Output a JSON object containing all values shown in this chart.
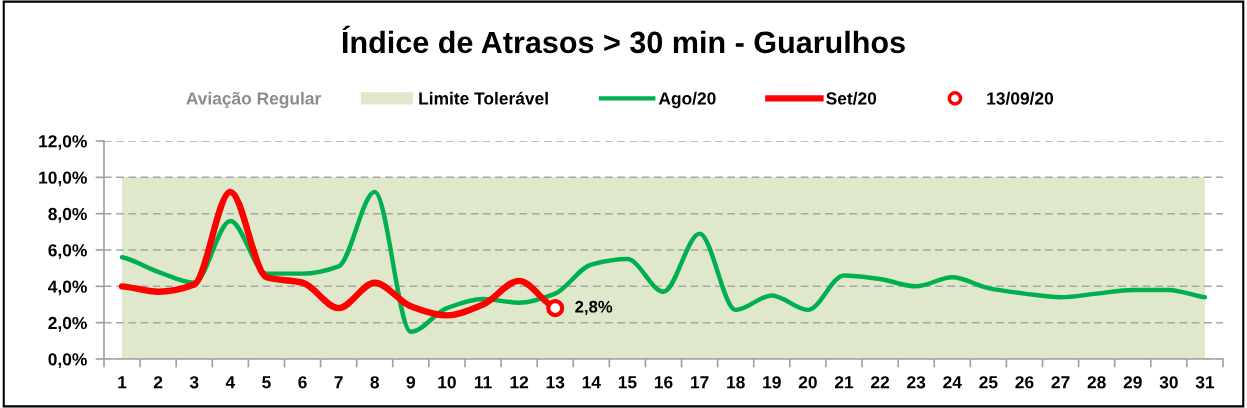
{
  "chart_data": {
    "type": "line",
    "title": "Índice de Atrasos > 30 min - Guarulhos",
    "legend_title": "Aviação Regular",
    "categories": [
      "1",
      "2",
      "3",
      "4",
      "5",
      "6",
      "7",
      "8",
      "9",
      "10",
      "11",
      "12",
      "13",
      "14",
      "15",
      "16",
      "17",
      "18",
      "19",
      "20",
      "21",
      "22",
      "23",
      "24",
      "25",
      "26",
      "27",
      "28",
      "29",
      "30",
      "31"
    ],
    "series": [
      {
        "name": "Ago/20",
        "color": "#00b050",
        "values": [
          5.6,
          4.8,
          4.2,
          7.6,
          4.7,
          4.7,
          5.1,
          9.2,
          1.5,
          2.8,
          3.3,
          3.1,
          3.6,
          5.2,
          5.5,
          3.7,
          6.9,
          2.7,
          3.5,
          2.7,
          4.6,
          4.4,
          4.0,
          4.5,
          3.9,
          3.6,
          3.4,
          3.6,
          3.8,
          3.8,
          3.4
        ]
      },
      {
        "name": "Set/20",
        "color": "#ff0000",
        "values": [
          4.0,
          3.7,
          4.1,
          9.2,
          4.5,
          4.2,
          2.8,
          4.2,
          2.9,
          2.4,
          3.0,
          4.3,
          2.8,
          null,
          null,
          null,
          null,
          null,
          null,
          null,
          null,
          null,
          null,
          null,
          null,
          null,
          null,
          null,
          null,
          null,
          null
        ]
      },
      {
        "name": "13/09/20",
        "type": "scatter",
        "marker": "circle",
        "color": "#ff0000",
        "values": [
          null,
          null,
          null,
          null,
          null,
          null,
          null,
          null,
          null,
          null,
          null,
          null,
          2.8,
          null,
          null,
          null,
          null,
          null,
          null,
          null,
          null,
          null,
          null,
          null,
          null,
          null,
          null,
          null,
          null,
          null,
          null
        ],
        "value_labels": [
          null,
          null,
          null,
          null,
          null,
          null,
          null,
          null,
          null,
          null,
          null,
          null,
          "2,8%",
          null,
          null,
          null,
          null,
          null,
          null,
          null,
          null,
          null,
          null,
          null,
          null,
          null,
          null,
          null,
          null,
          null,
          null
        ]
      }
    ],
    "ylim": [
      0,
      12
    ],
    "yticks": [
      {
        "value": 0,
        "label": "0,0%"
      },
      {
        "value": 2,
        "label": "2,0%"
      },
      {
        "value": 4,
        "label": "4,0%"
      },
      {
        "value": 6,
        "label": "6,0%"
      },
      {
        "value": 8,
        "label": "8,0%"
      },
      {
        "value": 10,
        "label": "10,0%"
      },
      {
        "value": 12,
        "label": "12,0%"
      }
    ],
    "bands": [
      {
        "axis": "y",
        "from": 0,
        "to": 10,
        "label": "Limite Tolerável",
        "color": "#dfe8cb"
      }
    ],
    "grid": "y",
    "legend": "top"
  }
}
